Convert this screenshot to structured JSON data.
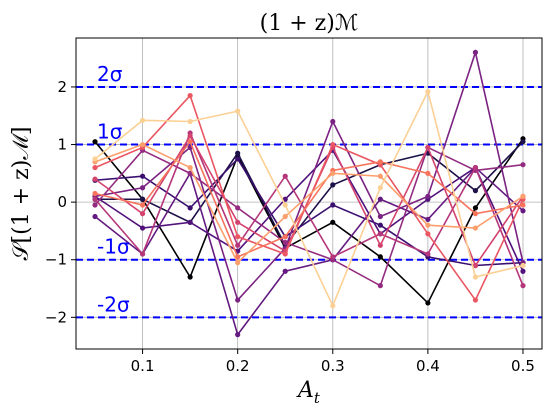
{
  "chart_data": {
    "type": "line",
    "title": "(1 + z)ℳ",
    "xlabel": "A",
    "xlabel_sub": "t",
    "ylabel": "𝒮[(1 + z)ℳ]",
    "xlim": [
      0.03,
      0.52
    ],
    "ylim": [
      -2.55,
      2.85
    ],
    "x_ticks": [
      0.1,
      0.2,
      0.3,
      0.4,
      0.5
    ],
    "x_tick_labels": [
      "0.1",
      "0.2",
      "0.3",
      "0.4",
      "0.5"
    ],
    "y_ticks": [
      -2,
      -1,
      0,
      1,
      2
    ],
    "y_tick_labels": [
      "−2",
      "−1",
      "0",
      "1",
      "2"
    ],
    "grid": true,
    "reference_lines": [
      {
        "y": 2,
        "label": "2σ"
      },
      {
        "y": 1,
        "label": "1σ"
      },
      {
        "y": -1,
        "label": "-1σ"
      },
      {
        "y": -2,
        "label": "-2σ"
      }
    ],
    "x": [
      0.05,
      0.1,
      0.15,
      0.2,
      0.25,
      0.3,
      0.35,
      0.4,
      0.45,
      0.5
    ],
    "series": [
      {
        "color": "#000004",
        "values": [
          1.05,
          0.05,
          -1.3,
          0.8,
          -0.8,
          -0.35,
          -0.95,
          -1.75,
          -0.1,
          1.1
        ]
      },
      {
        "color": "#1d1147",
        "values": [
          0.05,
          0.05,
          -0.35,
          0.85,
          -0.75,
          0.3,
          0.65,
          0.85,
          0.2,
          1.05
        ]
      },
      {
        "color": "#3b0f70",
        "values": [
          0.38,
          0.45,
          -0.1,
          0.75,
          -0.6,
          -0.05,
          -0.4,
          -0.95,
          -1.1,
          -1.05
        ]
      },
      {
        "color": "#51127c",
        "values": [
          0.1,
          -0.45,
          -0.35,
          -0.85,
          0.05,
          0.9,
          -0.55,
          0.05,
          0.6,
          -1.2
        ]
      },
      {
        "color": "#641a80",
        "values": [
          -0.25,
          -0.9,
          0.5,
          -2.3,
          -1.2,
          -1.0,
          0.05,
          -0.3,
          0.6,
          -0.15
        ]
      },
      {
        "color": "#7b2382",
        "values": [
          0.1,
          0.25,
          0.95,
          -1.7,
          -0.8,
          1.4,
          -0.25,
          0.1,
          2.6,
          -1.05
        ]
      },
      {
        "color": "#932b80",
        "values": [
          -0.05,
          0.9,
          0.5,
          -0.1,
          -0.7,
          -1.0,
          -1.45,
          0.95,
          0.55,
          0.65
        ]
      },
      {
        "color": "#b5367a",
        "values": [
          0.05,
          -0.9,
          1.2,
          -0.75,
          0.45,
          -0.95,
          -0.55,
          -0.9,
          0.6,
          -1.45
        ]
      },
      {
        "color": "#d3436e",
        "values": [
          0.4,
          -0.2,
          1.15,
          -0.35,
          -0.85,
          0.95,
          -0.75,
          0.95,
          -1.1,
          0.1
        ]
      },
      {
        "color": "#ea5661",
        "values": [
          0.6,
          0.95,
          1.85,
          -0.6,
          -0.9,
          1.0,
          0.65,
          -0.55,
          -1.7,
          0.05
        ]
      },
      {
        "color": "#f7735c",
        "values": [
          0.15,
          -0.05,
          1.05,
          -0.95,
          -0.6,
          0.55,
          0.7,
          0.5,
          -0.2,
          -0.05
        ]
      },
      {
        "color": "#fd9f6c",
        "values": [
          0.7,
          1.0,
          0.6,
          -1.05,
          -0.25,
          0.5,
          0.45,
          -0.4,
          -0.45,
          0.1
        ]
      },
      {
        "color": "#fcd094",
        "values": [
          0.75,
          1.42,
          1.4,
          1.58,
          -0.05,
          -1.8,
          0.25,
          1.92,
          -1.3,
          -1.1
        ]
      }
    ]
  }
}
